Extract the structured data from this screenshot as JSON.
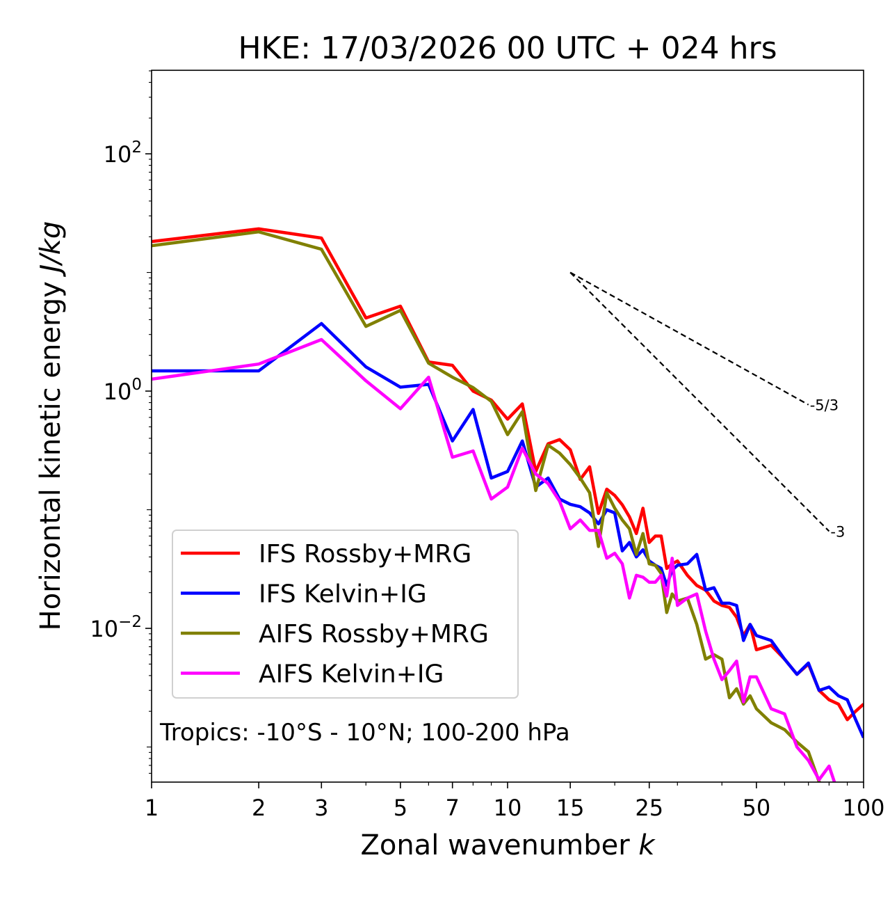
{
  "chart_data": {
    "type": "line",
    "title": "HKE: 17/03/2026 00 UTC + 024 hrs",
    "xlabel": "Zonal wavenumber",
    "xlabel_italic": "k",
    "ylabel": "Horizontal kinetic energy",
    "ylabel_italic": "J/kg",
    "xscale": "log",
    "yscale": "log",
    "xlim": [
      1,
      100
    ],
    "ylim": [
      0.000506,
      506
    ],
    "xticks": [
      1,
      2,
      3,
      5,
      7,
      10,
      15,
      25,
      50,
      100
    ],
    "xtick_labels": [
      "1",
      "2",
      "3",
      "5",
      "7",
      "10",
      "15",
      "25",
      "50",
      "100"
    ],
    "yticks": [
      100,
      1,
      0.01
    ],
    "ytick_labels": [
      {
        "base": "10",
        "exp": "2"
      },
      {
        "base": "10",
        "exp": "0"
      },
      {
        "base": "10",
        "exp": "−2"
      }
    ],
    "annotation": "Tropics: -10°S - 10°N; 100-200 hPa",
    "legend_position": "lower-left",
    "x": [
      1,
      2,
      3,
      4,
      5,
      6,
      7,
      8,
      9,
      10,
      11,
      12,
      13,
      14,
      15,
      16,
      17,
      18,
      19,
      20,
      21,
      22,
      23,
      24,
      25,
      26,
      27,
      28,
      29,
      30,
      32,
      34,
      36,
      38,
      40,
      42,
      44,
      46,
      48,
      50,
      55,
      60,
      65,
      70,
      75,
      80,
      85,
      90,
      95,
      100
    ],
    "series": [
      {
        "name": "IFS Rossby+MRG",
        "color": "#ff0000",
        "values": [
          18.2,
          23.3,
          19.5,
          4.13,
          5.2,
          1.76,
          1.65,
          1.0,
          0.84,
          0.58,
          0.78,
          0.21,
          0.36,
          0.39,
          0.32,
          0.18,
          0.23,
          0.093,
          0.149,
          0.132,
          0.11,
          0.087,
          0.063,
          0.103,
          0.053,
          0.06,
          0.06,
          0.032,
          0.035,
          0.037,
          0.028,
          0.023,
          0.021,
          0.017,
          0.0156,
          0.015,
          0.0124,
          0.0087,
          0.0108,
          0.0066,
          0.0072,
          0.0055,
          0.0041,
          0.005,
          0.003,
          0.0025,
          0.0023,
          0.0017,
          0.002,
          0.0023
        ]
      },
      {
        "name": "IFS Kelvin+IG",
        "color": "#0000ff",
        "values": [
          1.48,
          1.48,
          3.71,
          1.6,
          1.08,
          1.14,
          0.38,
          0.7,
          0.185,
          0.21,
          0.38,
          0.155,
          0.185,
          0.123,
          0.111,
          0.106,
          0.094,
          0.076,
          0.1,
          0.094,
          0.045,
          0.053,
          0.04,
          0.046,
          0.037,
          0.034,
          0.032,
          0.023,
          0.031,
          0.034,
          0.035,
          0.042,
          0.021,
          0.022,
          0.0163,
          0.0163,
          0.0156,
          0.0079,
          0.0108,
          0.0087,
          0.0079,
          0.0055,
          0.0041,
          0.0051,
          0.003,
          0.0032,
          0.0027,
          0.0025,
          0.0017,
          0.0012
        ]
      },
      {
        "name": "AIFS Rossby+MRG",
        "color": "#808000",
        "values": [
          16.8,
          22.0,
          15.7,
          3.51,
          4.79,
          1.72,
          1.31,
          1.07,
          0.82,
          0.43,
          0.67,
          0.145,
          0.35,
          0.3,
          0.24,
          0.185,
          0.139,
          0.049,
          0.139,
          0.103,
          0.082,
          0.069,
          0.042,
          0.063,
          0.035,
          0.034,
          0.029,
          0.0136,
          0.0195,
          0.017,
          0.018,
          0.0108,
          0.0055,
          0.006,
          0.0055,
          0.0026,
          0.0031,
          0.0023,
          0.0027,
          0.0021,
          0.0016,
          0.0014,
          0.0011,
          0.00091,
          0.00051,
          0.0004,
          null,
          null,
          null,
          null
        ]
      },
      {
        "name": "AIFS Kelvin+IG",
        "color": "#ff00ff",
        "values": [
          1.26,
          1.69,
          2.72,
          1.22,
          0.71,
          1.31,
          0.277,
          0.313,
          0.123,
          0.155,
          0.33,
          0.2,
          0.166,
          0.118,
          0.069,
          0.082,
          0.067,
          0.067,
          0.039,
          0.043,
          0.035,
          0.018,
          0.028,
          0.027,
          0.0245,
          0.0245,
          0.028,
          0.0187,
          0.039,
          0.0156,
          0.018,
          0.0195,
          0.0095,
          0.0055,
          0.0037,
          0.0044,
          0.0053,
          0.0024,
          0.0039,
          0.0039,
          0.0021,
          0.0019,
          0.001,
          0.00077,
          0.00053,
          0.00069,
          0.0004,
          null,
          null,
          null
        ]
      }
    ],
    "reference_lines": [
      {
        "label": "-5/3",
        "slope": -1.6667,
        "k_start": 15,
        "k_end": 70,
        "y_start": 10,
        "style": "dashed",
        "color": "#000000"
      },
      {
        "label": "-3",
        "slope": -3,
        "k_start": 15,
        "k_end": 80,
        "y_start": 10,
        "style": "dashed",
        "color": "#000000"
      }
    ],
    "grid": false
  }
}
